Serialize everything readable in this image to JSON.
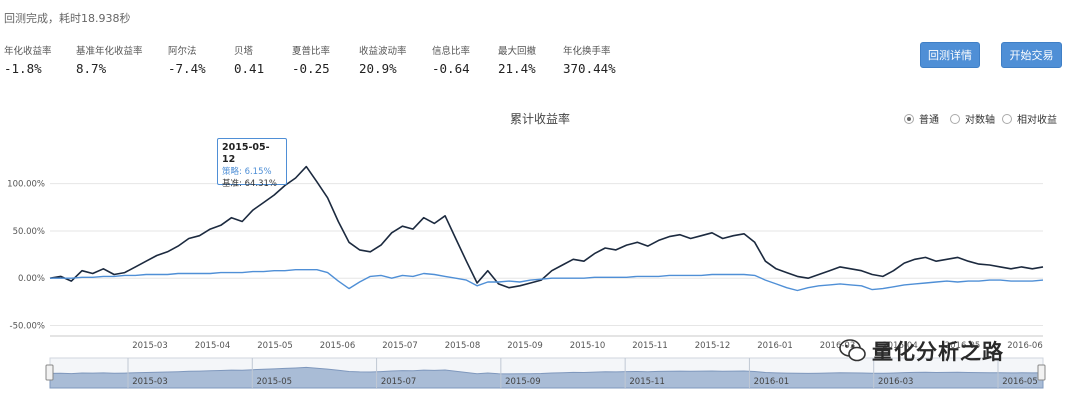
{
  "status_text": "回测完成，耗时18.938秒",
  "metrics": [
    {
      "label": "年化收益率",
      "value": "-1.8%"
    },
    {
      "label": "基准年化收益率",
      "value": "8.7%"
    },
    {
      "label": "阿尔法",
      "value": "-7.4%"
    },
    {
      "label": "贝塔",
      "value": "0.41"
    },
    {
      "label": "夏普比率",
      "value": "-0.25"
    },
    {
      "label": "收益波动率",
      "value": "20.9%"
    },
    {
      "label": "信息比率",
      "value": "-0.64"
    },
    {
      "label": "最大回撤",
      "value": "21.4%"
    },
    {
      "label": "年化换手率",
      "value": "370.44%"
    }
  ],
  "buttons": {
    "details": "回测详情",
    "trade": "开始交易"
  },
  "chart_title": "累计收益率",
  "scale_options": [
    {
      "label": "普通",
      "selected": true
    },
    {
      "label": "对数轴",
      "selected": false
    },
    {
      "label": "相对收益",
      "selected": false
    }
  ],
  "tooltip": {
    "date": "2015-05-12",
    "strategy": "策略: 6.15%",
    "benchmark": "基准: 64.31%"
  },
  "watermark": "量化分析之路",
  "colors": {
    "benchmark": "#1c2a3f",
    "strategy": "#4f8fd6",
    "navigator": "#a9bcd6",
    "button": "#4f8fd6"
  },
  "chart_data": {
    "type": "line",
    "y_ticks": [
      "100.00%",
      "50.00%",
      "0.00%",
      "-50.00%"
    ],
    "y_tick_values": [
      100,
      50,
      0,
      -50
    ],
    "ylim": [
      -60,
      125
    ],
    "x_ticks": [
      "2015-03",
      "2015-04",
      "2015-05",
      "2015-06",
      "2015-07",
      "2015-08",
      "2015-09",
      "2015-10",
      "2015-11",
      "2015-12",
      "2016-01",
      "2016-03",
      "2016-04",
      "2016-05",
      "2016-06"
    ],
    "navigator_ticks": [
      "2015-03",
      "2015-05",
      "2015-07",
      "2015-09",
      "2015-11",
      "2016-01",
      "2016-03",
      "2016-05"
    ],
    "series": [
      {
        "name": "基准",
        "values": [
          0,
          2,
          -3,
          8,
          5,
          10,
          4,
          6,
          12,
          18,
          24,
          28,
          34,
          42,
          45,
          52,
          56,
          64,
          60,
          72,
          80,
          88,
          98,
          106,
          118,
          102,
          85,
          60,
          38,
          30,
          28,
          35,
          48,
          55,
          52,
          64,
          58,
          66,
          42,
          18,
          -5,
          8,
          -6,
          -10,
          -8,
          -5,
          -2,
          8,
          14,
          20,
          18,
          26,
          32,
          30,
          35,
          38,
          34,
          40,
          44,
          46,
          42,
          45,
          48,
          42,
          45,
          47,
          38,
          18,
          10,
          6,
          2,
          0,
          4,
          8,
          12,
          10,
          8,
          4,
          2,
          8,
          16,
          20,
          22,
          18,
          20,
          22,
          18,
          15,
          14,
          12,
          10,
          12,
          10,
          12
        ]
      },
      {
        "name": "策略",
        "values": [
          0,
          0,
          0,
          1,
          1,
          2,
          2,
          3,
          3,
          4,
          4,
          4,
          5,
          5,
          5,
          5,
          6,
          6,
          6,
          7,
          7,
          8,
          8,
          9,
          9,
          9,
          6,
          -3,
          -11,
          -4,
          2,
          3,
          0,
          3,
          2,
          5,
          4,
          2,
          0,
          -2,
          -8,
          -4,
          -4,
          -3,
          -4,
          -2,
          -1,
          0,
          0,
          0,
          0,
          1,
          1,
          1,
          1,
          2,
          2,
          2,
          3,
          3,
          3,
          3,
          4,
          4,
          4,
          4,
          3,
          -2,
          -6,
          -10,
          -13,
          -10,
          -8,
          -7,
          -6,
          -7,
          -8,
          -12,
          -11,
          -9,
          -7,
          -6,
          -5,
          -4,
          -3,
          -4,
          -3,
          -3,
          -2,
          -2,
          -3,
          -3,
          -3,
          -2
        ]
      }
    ]
  }
}
